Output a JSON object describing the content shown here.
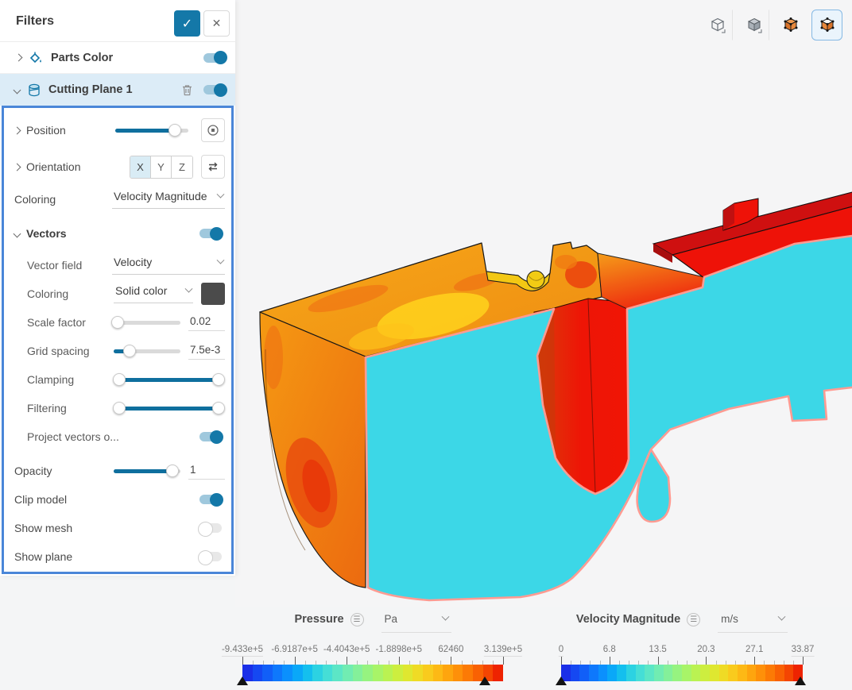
{
  "app": {
    "accent": "#1478a8",
    "selection_border": "#4a86d8",
    "background": "#f4f5f6"
  },
  "panel": {
    "title": "Filters",
    "items": [
      {
        "label": "Parts Color",
        "enabled": true
      },
      {
        "label": "Cutting Plane 1",
        "enabled": true
      }
    ]
  },
  "settings": {
    "position_label": "Position",
    "orientation_label": "Orientation",
    "axes": [
      "X",
      "Y",
      "Z"
    ],
    "active_axis": "X",
    "coloring_label": "Coloring",
    "coloring_value": "Velocity Magnitude",
    "vectors_label": "Vectors",
    "vector_field_label": "Vector field",
    "vector_field_value": "Velocity",
    "vector_coloring_label": "Coloring",
    "vector_coloring_value": "Solid color",
    "vector_color_swatch": "#4b4b4b",
    "scale_factor_label": "Scale factor",
    "scale_factor_value": "0.02",
    "grid_spacing_label": "Grid spacing",
    "grid_spacing_value": "7.5e-3",
    "clamping_label": "Clamping",
    "filtering_label": "Filtering",
    "project_vectors_label": "Project vectors o...",
    "opacity_label": "Opacity",
    "opacity_value": "1",
    "clip_model_label": "Clip model",
    "show_mesh_label": "Show mesh",
    "show_plane_label": "Show plane",
    "toggles": {
      "vectors": true,
      "project_vectors": true,
      "clip_model": true,
      "show_mesh": false,
      "show_plane": false
    }
  },
  "toolbar": {
    "buttons": [
      "wireframe-cube",
      "solid-cube",
      "surfaces-cube",
      "section-cube"
    ],
    "selected": "section-cube"
  },
  "legends": [
    {
      "title": "Pressure",
      "unit": "Pa",
      "ticks": [
        "-9.433e+5",
        "-6.9187e+5",
        "-4.4043e+5",
        "-1.8898e+5",
        "62460",
        "3.139e+5"
      ],
      "clamp_markers_pct": [
        0,
        93
      ]
    },
    {
      "title": "Velocity Magnitude",
      "unit": "m/s",
      "ticks": [
        "0",
        "6.8",
        "13.5",
        "20.3",
        "27.1",
        "33.87"
      ],
      "clamp_markers_pct": [
        0,
        99
      ]
    }
  ],
  "colormap": [
    "#1a2fe8",
    "#1548f2",
    "#115ff8",
    "#0e78fc",
    "#0b90fd",
    "#0aa8f8",
    "#14bfee",
    "#2cd2e2",
    "#45ded6",
    "#5ce6c6",
    "#71ecb2",
    "#84f09a",
    "#96f380",
    "#a8f468",
    "#baf252",
    "#cdee3f",
    "#dfe730",
    "#efdb25",
    "#f9cb1d",
    "#fdb915",
    "#fea50e",
    "#fe9009",
    "#fc7a05",
    "#f96103",
    "#f44502",
    "#ee2301"
  ],
  "scene": {
    "vector_color": "#3a4046",
    "description": "Valve cross-section: exterior colored by pressure, cutting plane colored by velocity magnitude with projected vector glyphs"
  }
}
